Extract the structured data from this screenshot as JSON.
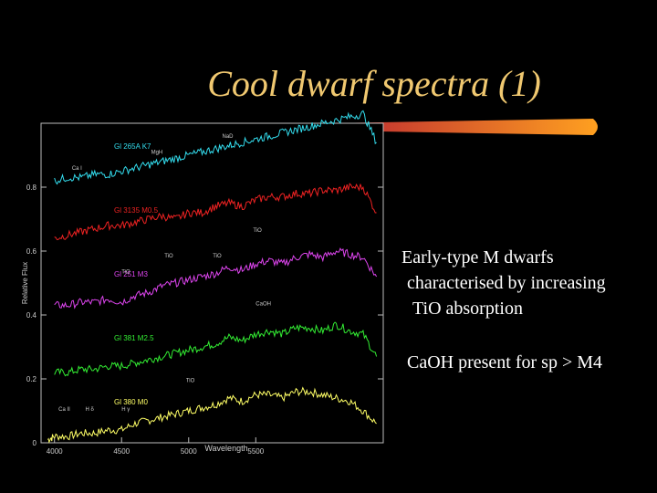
{
  "slide": {
    "title": "Cool dwarf spectra (1)",
    "bullets": [
      [
        "Early-type M dwarfs",
        "characterised by  increasing",
        "TiO absorption"
      ],
      "CaOH present for sp > M4"
    ],
    "colors": {
      "background": "#000000",
      "title": "#f0c870",
      "text": "#ffffff",
      "bar_start": "#2a0a3a",
      "bar_mid": "#c03030",
      "bar_end": "#ffa020"
    }
  },
  "chart_data": {
    "type": "line",
    "xlabel": "Wavelength",
    "ylabel": "Relative Flux",
    "xlim": [
      3900,
      6450
    ],
    "ylim": [
      0,
      1.0
    ],
    "x_ticks": [
      4000,
      4500,
      5000,
      5500
    ],
    "y_ticks": [
      0,
      0.2,
      0.4,
      0.6,
      0.8
    ],
    "y_tick_labels": [
      "0",
      "0.2",
      "0.4",
      "0.6",
      "0.8"
    ],
    "series": [
      {
        "name": "Gl 380 M0",
        "color": "#ffff66",
        "offset": 0.0,
        "x": [
          3950,
          4000,
          4100,
          4200,
          4300,
          4400,
          4500,
          4600,
          4700,
          4800,
          4900,
          5000,
          5100,
          5200,
          5300,
          5400,
          5500,
          5600,
          5700,
          5800,
          5900,
          6000,
          6100,
          6200,
          6300,
          6400
        ],
        "y": [
          0.01,
          0.02,
          0.02,
          0.03,
          0.03,
          0.04,
          0.04,
          0.06,
          0.07,
          0.08,
          0.09,
          0.1,
          0.11,
          0.12,
          0.14,
          0.13,
          0.15,
          0.15,
          0.14,
          0.16,
          0.16,
          0.15,
          0.14,
          0.13,
          0.1,
          0.06
        ]
      },
      {
        "name": "Gl 381 M2.5",
        "color": "#33ee33",
        "offset": 0.2,
        "x": [
          4000,
          4100,
          4200,
          4300,
          4400,
          4500,
          4600,
          4700,
          4800,
          4900,
          5000,
          5100,
          5200,
          5300,
          5400,
          5500,
          5600,
          5700,
          5800,
          5900,
          6000,
          6100,
          6200,
          6300,
          6400
        ],
        "y": [
          0.02,
          0.02,
          0.03,
          0.03,
          0.04,
          0.04,
          0.05,
          0.06,
          0.07,
          0.08,
          0.09,
          0.1,
          0.11,
          0.13,
          0.12,
          0.14,
          0.15,
          0.14,
          0.16,
          0.16,
          0.15,
          0.17,
          0.15,
          0.14,
          0.07
        ]
      },
      {
        "name": "Gl 251 M3",
        "color": "#dd44ee",
        "offset": 0.4,
        "x": [
          4000,
          4100,
          4200,
          4300,
          4400,
          4500,
          4600,
          4700,
          4800,
          4900,
          5000,
          5100,
          5200,
          5300,
          5400,
          5500,
          5600,
          5700,
          5800,
          5900,
          6000,
          6100,
          6200,
          6300,
          6400
        ],
        "y": [
          0.03,
          0.03,
          0.04,
          0.04,
          0.05,
          0.04,
          0.06,
          0.07,
          0.09,
          0.1,
          0.11,
          0.12,
          0.13,
          0.15,
          0.14,
          0.16,
          0.17,
          0.16,
          0.18,
          0.19,
          0.18,
          0.2,
          0.19,
          0.18,
          0.12
        ]
      },
      {
        "name": "Gl 3135 M0.5",
        "color": "#ee2222",
        "offset": 0.6,
        "x": [
          4000,
          4100,
          4200,
          4300,
          4400,
          4500,
          4600,
          4700,
          4800,
          4900,
          5000,
          5100,
          5200,
          5300,
          5400,
          5500,
          5600,
          5700,
          5800,
          5900,
          6000,
          6100,
          6200,
          6300,
          6400
        ],
        "y": [
          0.04,
          0.05,
          0.06,
          0.07,
          0.08,
          0.08,
          0.09,
          0.1,
          0.11,
          0.1,
          0.12,
          0.12,
          0.14,
          0.15,
          0.14,
          0.16,
          0.17,
          0.17,
          0.18,
          0.18,
          0.19,
          0.19,
          0.2,
          0.2,
          0.12
        ]
      },
      {
        "name": "Gl 265A K7",
        "color": "#33ddee",
        "offset": 0.8,
        "x": [
          4000,
          4100,
          4200,
          4300,
          4400,
          4500,
          4600,
          4700,
          4800,
          4900,
          5000,
          5100,
          5200,
          5300,
          5400,
          5500,
          5600,
          5700,
          5800,
          5900,
          6000,
          6100,
          6200,
          6300,
          6400
        ],
        "y": [
          0.02,
          0.03,
          0.03,
          0.04,
          0.04,
          0.05,
          0.06,
          0.07,
          0.08,
          0.09,
          0.1,
          0.11,
          0.12,
          0.13,
          0.14,
          0.15,
          0.16,
          0.17,
          0.18,
          0.19,
          0.2,
          0.21,
          0.22,
          0.23,
          0.14
        ]
      }
    ],
    "annotations": [
      "Ca I",
      "MgH",
      "NaD",
      "TiO",
      "TiO",
      "TiO",
      "TiO",
      "CaOH",
      "TiO",
      "Ca II",
      "H δ",
      "H γ"
    ]
  }
}
